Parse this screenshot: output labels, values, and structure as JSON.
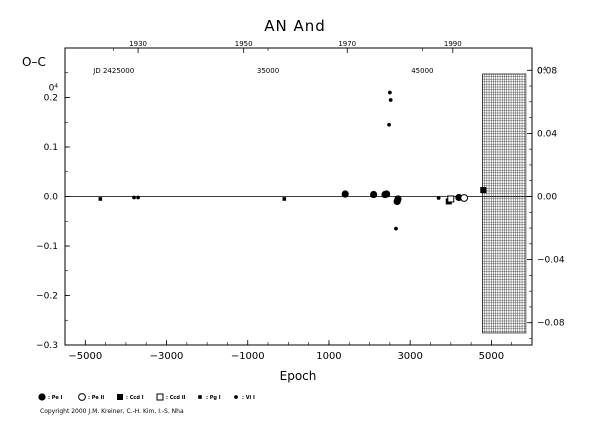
{
  "chart_data": {
    "type": "scatter",
    "title": "AN And",
    "ylabel": "O–C",
    "xlabel": "Epoch",
    "xlim": [
      -5500,
      6000
    ],
    "ylim": [
      -0.3,
      0.3
    ],
    "x_ticks": [
      -5000,
      -3000,
      -1000,
      1000,
      3000,
      5000
    ],
    "x_tick_labels": [
      "−5000",
      "−3000",
      "−1000",
      "1000",
      "3000",
      "5000"
    ],
    "y_ticks": [
      0.2,
      0.1,
      0.0,
      -0.1,
      -0.2,
      -0.3
    ],
    "y_tick_labels": [
      "0.2",
      "0.1",
      "0.0",
      "−0.1",
      "−0.2",
      "−0.3"
    ],
    "y_right_ticks": [
      0.08,
      0.04,
      0.0,
      -0.04,
      -0.08
    ],
    "y_right_tick_labels": [
      "0.08",
      "0.04",
      "0.00",
      "−0.04",
      "−0.08"
    ],
    "top_year_ticks": [
      {
        "epoch": -3700,
        "label": "1930"
      },
      {
        "epoch": -1100,
        "label": "1950"
      },
      {
        "epoch": 1450,
        "label": "1970"
      },
      {
        "epoch": 4050,
        "label": "1990"
      }
    ],
    "top_jd_ticks": [
      {
        "epoch": -4300,
        "label": "JD 2425000"
      },
      {
        "epoch": -500,
        "label": "35000"
      },
      {
        "epoch": 3300,
        "label": "45000"
      }
    ],
    "right_axis_top_label": "0⁴",
    "left_axis_top_label": "0⁴",
    "shaded_region_x": [
      4780,
      5850
    ],
    "legend": [
      {
        "symbol": "big-filled-circle",
        "label": ": Pe I"
      },
      {
        "symbol": "big-open-circle",
        "label": ": Pe II"
      },
      {
        "symbol": "filled-square",
        "label": ": Ccd I"
      },
      {
        "symbol": "open-square",
        "label": ": Ccd II"
      },
      {
        "symbol": "small-filled-square",
        "label": ": Pg I"
      },
      {
        "symbol": "small-filled-circle",
        "label": ": Vi I"
      }
    ],
    "series": [
      {
        "symbol": "small-filled-square",
        "points": [
          [
            -4630,
            -0.005
          ],
          [
            -100,
            -0.005
          ]
        ]
      },
      {
        "symbol": "small-filled-circle",
        "points": [
          [
            -3800,
            -0.002
          ],
          [
            -3700,
            -0.002
          ],
          [
            2500,
            0.21
          ],
          [
            2520,
            0.195
          ],
          [
            2480,
            0.145
          ],
          [
            2650,
            -0.065
          ],
          [
            3700,
            -0.003
          ]
        ]
      },
      {
        "symbol": "big-filled-circle",
        "points": [
          [
            1400,
            0.005
          ],
          [
            2100,
            0.004
          ],
          [
            2380,
            0.004
          ],
          [
            2420,
            0.005
          ],
          [
            2680,
            -0.01
          ],
          [
            2700,
            -0.005
          ],
          [
            4200,
            -0.002
          ]
        ]
      },
      {
        "symbol": "filled-square",
        "points": [
          [
            3950,
            -0.01
          ],
          [
            4800,
            0.013
          ]
        ]
      },
      {
        "symbol": "open-square",
        "points": [
          [
            4000,
            -0.005
          ]
        ]
      },
      {
        "symbol": "big-open-circle",
        "points": [
          [
            4330,
            -0.003
          ]
        ]
      }
    ]
  },
  "copyright": "Copyright 2000 J.M. Kreiner, C.-H. Kim, I.-S. Nha"
}
